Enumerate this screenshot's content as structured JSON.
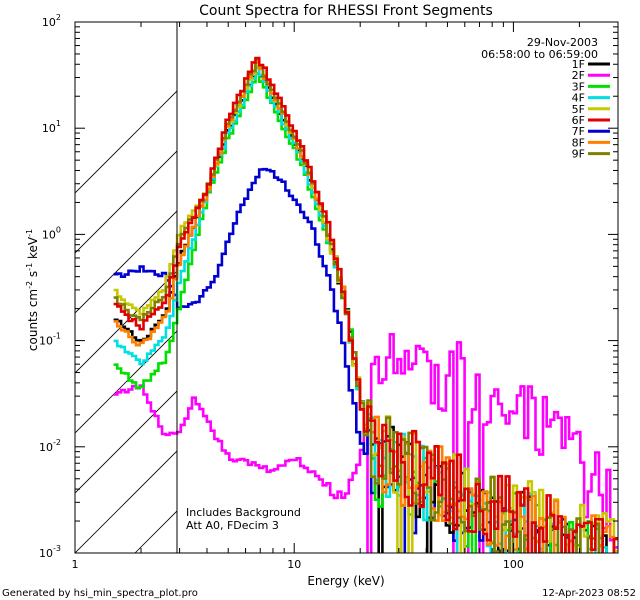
{
  "chart_data": {
    "type": "line",
    "title": "Count Spectra for RHESSI Front Segments",
    "xlabel": "Energy (keV)",
    "ylabel_parts": [
      "counts cm",
      "-2",
      " s",
      "-1",
      " keV",
      "-1"
    ],
    "xscale": "log",
    "yscale": "log",
    "xlim": [
      1,
      300
    ],
    "ylim": [
      0.001,
      100
    ],
    "x_ticks": [
      {
        "value": 1,
        "label": "1"
      },
      {
        "value": 10,
        "label": "10"
      },
      {
        "value": 100,
        "label": "100"
      }
    ],
    "y_ticks": [
      {
        "value": 0.001,
        "base": "10",
        "exp": "-3"
      },
      {
        "value": 0.01,
        "base": "10",
        "exp": "-2"
      },
      {
        "value": 0.1,
        "base": "10",
        "exp": "-1"
      },
      {
        "value": 1,
        "base": "10",
        "exp": "0"
      },
      {
        "value": 10,
        "base": "10",
        "exp": "1"
      },
      {
        "value": 100,
        "base": "10",
        "exp": "2"
      }
    ],
    "date": "29-Nov-2003",
    "time_range": "06:58:00 to 06:59:00",
    "annotations": [
      "Includes Background",
      "Att A0, FDecim 3"
    ],
    "hatched_region": {
      "x_from": 1,
      "x_to": 3
    },
    "legend_position": "top-right",
    "series": [
      {
        "name": "1F",
        "color": "#000000",
        "peak": 38,
        "peak_e": 6.8,
        "low": 0.16,
        "tail": [
          0.0075,
          0.003,
          0.0012
        ]
      },
      {
        "name": "2F",
        "color": "#ff00ff",
        "peak": null,
        "low": 0.03,
        "tail": null
      },
      {
        "name": "3F",
        "color": "#00e000",
        "peak": 32,
        "peak_e": 6.8,
        "low": 0.06,
        "tail": [
          0.006,
          0.0025,
          0.0011
        ]
      },
      {
        "name": "4F",
        "color": "#00e0e0",
        "peak": 36,
        "peak_e": 6.8,
        "low": 0.1,
        "tail": [
          0.007,
          0.003,
          0.0012
        ]
      },
      {
        "name": "5F",
        "color": "#c8c800",
        "peak": 41,
        "peak_e": 6.8,
        "low": 0.3,
        "tail": [
          0.01,
          0.004,
          0.0015
        ]
      },
      {
        "name": "6F",
        "color": "#e00000",
        "peak": 48,
        "peak_e": 6.8,
        "low": 0.22,
        "tail": [
          0.009,
          0.0035,
          0.0014
        ]
      },
      {
        "name": "7F",
        "color": "#0000d0",
        "peak": 4.5,
        "peak_e": 7.6,
        "low": 0.4,
        "tail": [
          0.005,
          0.002,
          0.001
        ]
      },
      {
        "name": "8F",
        "color": "#ff8000",
        "peak": 42,
        "peak_e": 6.8,
        "low": 0.15,
        "tail": [
          0.008,
          0.0033,
          0.0013
        ]
      },
      {
        "name": "9F",
        "color": "#808000",
        "peak": 44,
        "peak_e": 6.8,
        "low": 0.25,
        "tail": [
          0.0085,
          0.0034,
          0.0013
        ]
      }
    ]
  },
  "footer": {
    "generated_by": "Generated by hsi_min_spectra_plot.pro",
    "timestamp": "12-Apr-2023 08:52"
  }
}
